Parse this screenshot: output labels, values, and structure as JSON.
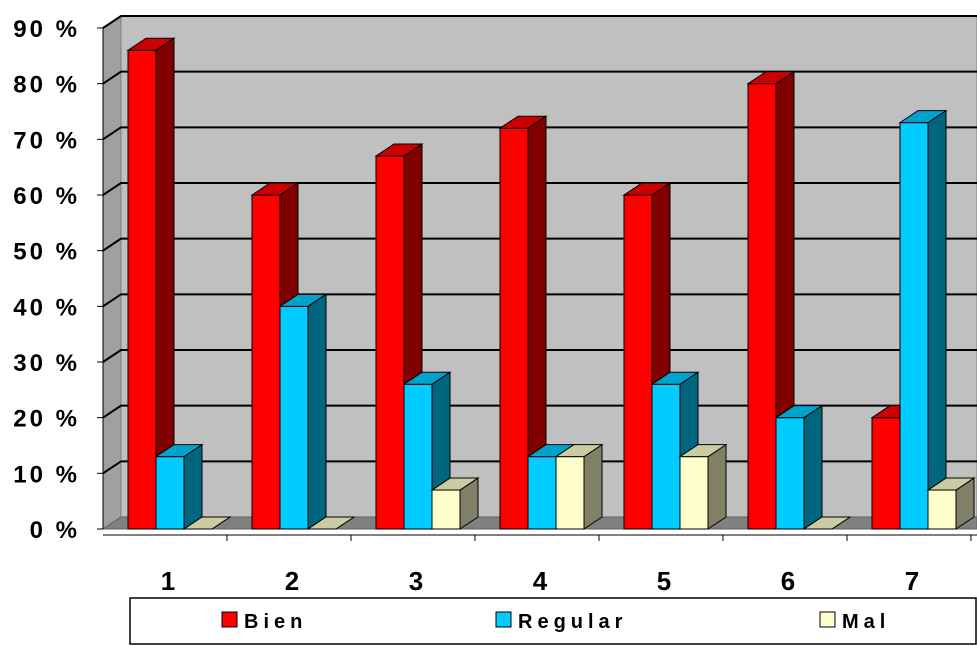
{
  "chart_data": {
    "type": "bar",
    "title": "",
    "xlabel": "",
    "ylabel": "",
    "categories": [
      "1",
      "2",
      "3",
      "4",
      "5",
      "6",
      "7"
    ],
    "series": [
      {
        "name": "Bien",
        "values": [
          86,
          60,
          67,
          72,
          60,
          80,
          20
        ]
      },
      {
        "name": "Regular",
        "values": [
          13,
          40,
          26,
          13,
          26,
          20,
          73
        ]
      },
      {
        "name": "Mal",
        "values": [
          0,
          0,
          7,
          13,
          13,
          0,
          7
        ]
      }
    ],
    "ylim": [
      0,
      90
    ],
    "yticks": [
      "0 %",
      "10 %",
      "20 %",
      "30 %",
      "40 %",
      "50 %",
      "60 %",
      "70 %",
      "80 %",
      "90 %"
    ],
    "grid": true,
    "legend_position": "bottom",
    "style": "3d-bar",
    "colors": {
      "Bien": {
        "front": "#ff0000",
        "top": "#cc0000",
        "side": "#800000"
      },
      "Regular": {
        "front": "#00ccff",
        "top": "#00a3cc",
        "side": "#006680"
      },
      "Mal": {
        "front": "#ffffcc",
        "top": "#ccccA3",
        "side": "#808066"
      },
      "wall": "#c0c0c0",
      "floor": "#808080"
    }
  }
}
